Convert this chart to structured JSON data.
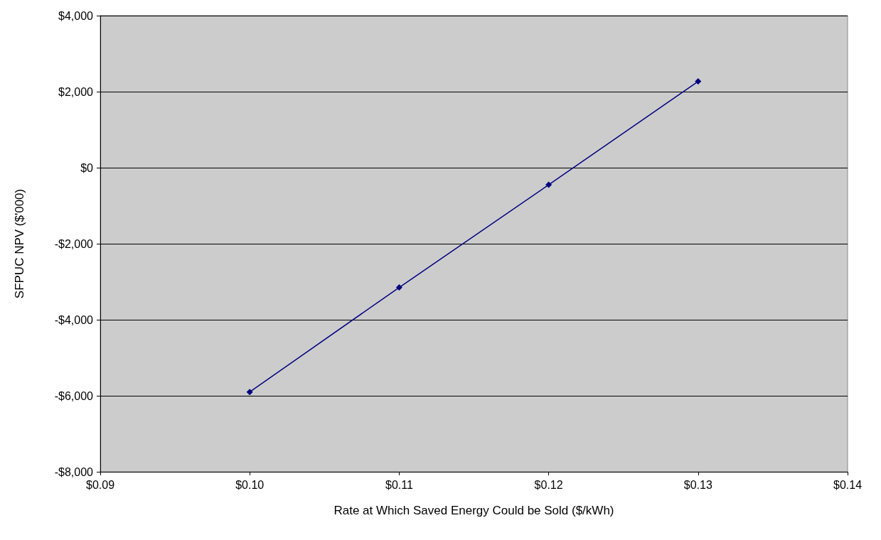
{
  "chart_data": {
    "type": "line",
    "xlabel": "Rate at Which Saved Energy Could be Sold ($/kWh)",
    "ylabel": "SFPUC NPV ($'000)",
    "x": [
      0.1,
      0.11,
      0.12,
      0.13
    ],
    "series": [
      {
        "color": "#000080",
        "values": [
          -5900,
          -3150,
          -450,
          2270
        ]
      }
    ],
    "xlim": [
      0.09,
      0.14
    ],
    "xticks": [
      {
        "value": 0.09,
        "label": "$0.09"
      },
      {
        "value": 0.1,
        "label": "$0.10"
      },
      {
        "value": 0.11,
        "label": "$0.11"
      },
      {
        "value": 0.12,
        "label": "$0.12"
      },
      {
        "value": 0.13,
        "label": "$0.13"
      },
      {
        "value": 0.14,
        "label": "$0.14"
      }
    ],
    "ylim": [
      -8000,
      4000
    ],
    "yticks": [
      {
        "value": -8000,
        "label": "-$8,000"
      },
      {
        "value": -6000,
        "label": "-$6,000"
      },
      {
        "value": -4000,
        "label": "-$4,000"
      },
      {
        "value": -2000,
        "label": "-$2,000"
      },
      {
        "value": 0,
        "label": "$0"
      },
      {
        "value": 2000,
        "label": "$2,000"
      },
      {
        "value": 4000,
        "label": "$4,000"
      }
    ],
    "grid": "y",
    "marker": "diamond",
    "line_style": "solid"
  }
}
